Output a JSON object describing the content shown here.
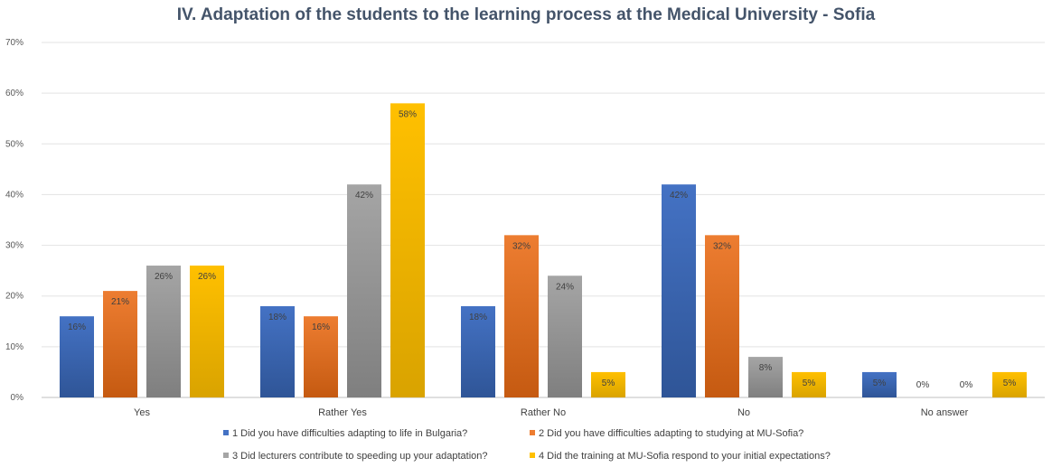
{
  "chart_data": {
    "type": "bar",
    "title": "IV. Adaptation of the students to the learning process at the Medical University - Sofia",
    "xlabel": "",
    "ylabel": "",
    "ylim": [
      0,
      70
    ],
    "yticks": [
      "0%",
      "10%",
      "20%",
      "30%",
      "40%",
      "50%",
      "60%",
      "70%"
    ],
    "categories": [
      "Yes",
      "Rather Yes",
      "Rather No",
      "No",
      "No answer"
    ],
    "grid": true,
    "legend_position": "bottom",
    "series": [
      {
        "name": "1 Did you have difficulties adapting to life in Bulgaria?",
        "values": [
          16,
          18,
          18,
          42,
          5
        ],
        "labels": [
          "16%",
          "18%",
          "18%",
          "42%",
          "5%"
        ],
        "color": "#4472c4",
        "color_dark": "#2f5597"
      },
      {
        "name": "2 Did you have difficulties adapting to studying at MU-Sofia?",
        "values": [
          21,
          16,
          32,
          32,
          0
        ],
        "labels": [
          "21%",
          "16%",
          "32%",
          "32%",
          "0%"
        ],
        "color": "#ed7d31",
        "color_dark": "#c55a11"
      },
      {
        "name": "3 Did lecturers contribute to speeding up your adaptation?",
        "values": [
          26,
          42,
          24,
          8,
          0
        ],
        "labels": [
          "26%",
          "42%",
          "24%",
          "8%",
          "0%"
        ],
        "color": "#a5a5a5",
        "color_dark": "#7f7f7f"
      },
      {
        "name": "4 Did the training at MU-Sofia respond to your initial expectations?",
        "values": [
          26,
          58,
          5,
          5,
          5
        ],
        "labels": [
          "26%",
          "58%",
          "5%",
          "5%",
          "5%"
        ],
        "color": "#ffc000",
        "color_dark": "#d9a300"
      }
    ]
  }
}
